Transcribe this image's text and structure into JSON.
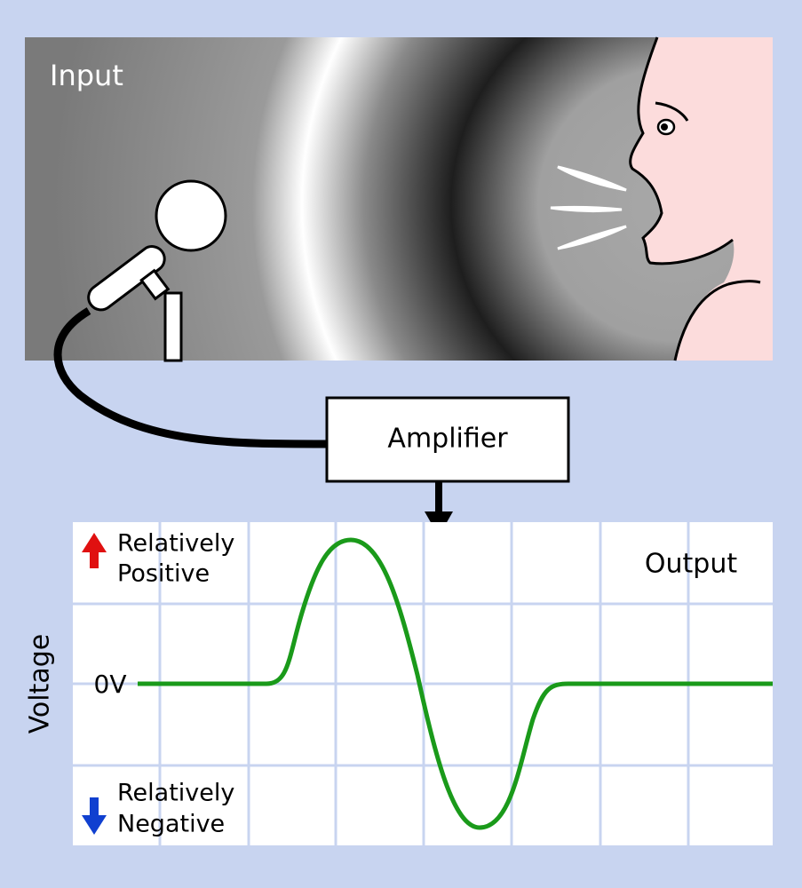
{
  "input_panel": {
    "label": "Input"
  },
  "amplifier": {
    "label": "Amplifier"
  },
  "output_panel": {
    "label": "Output",
    "axis_label": "Voltage",
    "zero_label": "0V",
    "positive_label": [
      "Relatively",
      "Positive"
    ],
    "negative_label": [
      "Relatively",
      "Negative"
    ]
  }
}
